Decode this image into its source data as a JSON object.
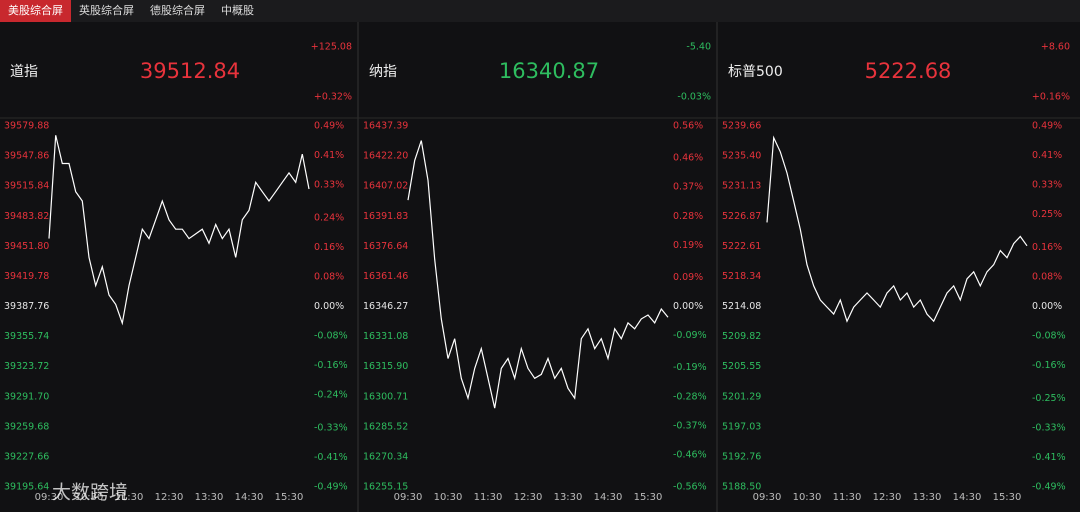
{
  "tabs": [
    "美股综合屏",
    "英股综合屏",
    "德股综合屏",
    "中概股"
  ],
  "watermark": "大数跨境",
  "chart_data": [
    {
      "type": "line",
      "title": "道指",
      "price": 39512.84,
      "change": "+125.08",
      "change_pct": "+0.32%",
      "color": "#e8333c",
      "line_color": "#ffffff",
      "x": [
        "09:30",
        "09:40",
        "09:50",
        "10:00",
        "10:10",
        "10:20",
        "10:30",
        "10:40",
        "10:50",
        "11:00",
        "11:10",
        "11:20",
        "11:30",
        "11:40",
        "11:50",
        "12:00",
        "12:10",
        "12:20",
        "12:30",
        "12:40",
        "12:50",
        "13:00",
        "13:10",
        "13:20",
        "13:30",
        "13:40",
        "13:50",
        "14:00",
        "14:10",
        "14:20",
        "14:30",
        "14:40",
        "14:50",
        "15:00",
        "15:10",
        "15:20",
        "15:30",
        "15:40",
        "15:50",
        "16:00"
      ],
      "values": [
        39460,
        39570,
        39540,
        39540,
        39510,
        39500,
        39440,
        39410,
        39430,
        39400,
        39390,
        39370,
        39410,
        39440,
        39470,
        39460,
        39480,
        39500,
        39480,
        39470,
        39470,
        39460,
        39465,
        39470,
        39455,
        39475,
        39460,
        39470,
        39440,
        39480,
        39490,
        39520,
        39510,
        39500,
        39510,
        39520,
        39530,
        39520,
        39550,
        39512.84
      ],
      "xticks": [
        "09:30",
        "10:30",
        "11:30",
        "12:30",
        "13:30",
        "14:30",
        "15:30"
      ],
      "ylim": [
        39195.64,
        39579.88
      ],
      "yticks": [
        39579.88,
        39547.86,
        39515.84,
        39483.82,
        {
          "value": 39451.8,
          "label": "39451.80"
        },
        39419.78,
        39387.76,
        39355.74,
        39323.72,
        {
          "value": 39291.7,
          "label": "39291.70"
        },
        39259.68,
        39227.66,
        39195.64
      ],
      "y2lim": [
        -0.49,
        0.49
      ],
      "y2ticks": [
        {
          "value": 0.49,
          "label": "0.49%"
        },
        {
          "value": 0.41,
          "label": "0.41%"
        },
        {
          "value": 0.33,
          "label": "0.33%"
        },
        {
          "value": 0.24,
          "label": "0.24%"
        },
        {
          "value": 0.16,
          "label": "0.16%"
        },
        {
          "value": 0.08,
          "label": "0.08%"
        },
        {
          "value": 0,
          "label": "0.00%"
        },
        {
          "value": -0.08,
          "label": "-0.08%"
        },
        {
          "value": -0.16,
          "label": "-0.16%"
        },
        {
          "value": -0.24,
          "label": "-0.24%"
        },
        {
          "value": -0.33,
          "label": "-0.33%"
        },
        {
          "value": -0.41,
          "label": "-0.41%"
        },
        {
          "value": -0.49,
          "label": "-0.49%"
        }
      ]
    },
    {
      "type": "line",
      "title": "纳指",
      "price": 16340.87,
      "change": "-5.40",
      "change_pct": "-0.03%",
      "color": "#2ebd5f",
      "line_color": "#ffffff",
      "x": [
        "09:30",
        "09:40",
        "09:50",
        "10:00",
        "10:10",
        "10:20",
        "10:30",
        "10:40",
        "10:50",
        "11:00",
        "11:10",
        "11:20",
        "11:30",
        "11:40",
        "11:50",
        "12:00",
        "12:10",
        "12:20",
        "12:30",
        "12:40",
        "12:50",
        "13:00",
        "13:10",
        "13:20",
        "13:30",
        "13:40",
        "13:50",
        "14:00",
        "14:10",
        "14:20",
        "14:30",
        "14:40",
        "14:50",
        "15:00",
        "15:10",
        "15:20",
        "15:30",
        "15:40",
        "15:50",
        "16:00"
      ],
      "values": [
        16400,
        16420,
        16430,
        16410,
        16370,
        16340,
        16320,
        16330,
        16310,
        16300,
        16315,
        16325,
        16310,
        16295,
        16315,
        16320,
        16310,
        16325,
        16315,
        16310,
        16312,
        16320,
        16310,
        16315,
        16305,
        16300,
        16330,
        16335,
        16325,
        16330,
        16320,
        16335,
        16330,
        16338,
        16335,
        16340,
        16342,
        16338,
        16345,
        16340.87
      ],
      "xticks": [
        "09:30",
        "10:30",
        "11:30",
        "12:30",
        "13:30",
        "14:30",
        "15:30"
      ],
      "ylim": [
        16255.15,
        16437.39
      ],
      "yticks": [
        16437.39,
        {
          "value": 16422.2,
          "label": "16422.20"
        },
        16407.02,
        16391.83,
        16376.64,
        16361.46,
        16346.27,
        16331.08,
        {
          "value": 16315.9,
          "label": "16315.90"
        },
        16300.71,
        16285.52,
        16270.34,
        16255.15
      ],
      "y2lim": [
        -0.56,
        0.56
      ],
      "y2ticks": [
        {
          "value": 0.56,
          "label": "0.56%"
        },
        {
          "value": 0.46,
          "label": "0.46%"
        },
        {
          "value": 0.37,
          "label": "0.37%"
        },
        {
          "value": 0.28,
          "label": "0.28%"
        },
        {
          "value": 0.19,
          "label": "0.19%"
        },
        {
          "value": 0.09,
          "label": "0.09%"
        },
        {
          "value": 0,
          "label": "0.00%"
        },
        {
          "value": -0.09,
          "label": "-0.09%"
        },
        {
          "value": -0.19,
          "label": "-0.19%"
        },
        {
          "value": -0.28,
          "label": "-0.28%"
        },
        {
          "value": -0.37,
          "label": "-0.37%"
        },
        {
          "value": -0.46,
          "label": "-0.46%"
        },
        {
          "value": -0.56,
          "label": "-0.56%"
        }
      ]
    },
    {
      "type": "line",
      "title": "标普500",
      "price": 5222.68,
      "change": "+8.60",
      "change_pct": "+0.16%",
      "color": "#e8333c",
      "line_color": "#ffffff",
      "x": [
        "09:30",
        "09:40",
        "09:50",
        "10:00",
        "10:10",
        "10:20",
        "10:30",
        "10:40",
        "10:50",
        "11:00",
        "11:10",
        "11:20",
        "11:30",
        "11:40",
        "11:50",
        "12:00",
        "12:10",
        "12:20",
        "12:30",
        "12:40",
        "12:50",
        "13:00",
        "13:10",
        "13:20",
        "13:30",
        "13:40",
        "13:50",
        "14:00",
        "14:10",
        "14:20",
        "14:30",
        "14:40",
        "14:50",
        "15:00",
        "15:10",
        "15:20",
        "15:30",
        "15:40",
        "15:50",
        "16:00"
      ],
      "values": [
        5226,
        5238,
        5236,
        5233,
        5229,
        5225,
        5220,
        5217,
        5215,
        5214,
        5213,
        5215,
        5212,
        5214,
        5215,
        5216,
        5215,
        5214,
        5216,
        5217,
        5215,
        5216,
        5214,
        5215,
        5213,
        5212,
        5214,
        5216,
        5217,
        5215,
        5218,
        5219,
        5217,
        5219,
        5220,
        5222,
        5221,
        5223,
        5224,
        5222.68
      ],
      "xticks": [
        "09:30",
        "10:30",
        "11:30",
        "12:30",
        "13:30",
        "14:30",
        "15:30"
      ],
      "ylim": [
        5188.5,
        5239.66
      ],
      "yticks": [
        5239.66,
        {
          "value": 5235.4,
          "label": "5235.40"
        },
        5231.13,
        5226.87,
        5222.61,
        5218.34,
        5214.08,
        5209.82,
        5205.55,
        5201.29,
        5197.03,
        5192.76,
        {
          "value": 5188.5,
          "label": "5188.50"
        }
      ],
      "y2lim": [
        -0.49,
        0.49
      ],
      "y2ticks": [
        {
          "value": 0.49,
          "label": "0.49%"
        },
        {
          "value": 0.41,
          "label": "0.41%"
        },
        {
          "value": 0.33,
          "label": "0.33%"
        },
        {
          "value": 0.25,
          "label": "0.25%"
        },
        {
          "value": 0.16,
          "label": "0.16%"
        },
        {
          "value": 0.08,
          "label": "0.08%"
        },
        {
          "value": 0,
          "label": "0.00%"
        },
        {
          "value": -0.08,
          "label": "-0.08%"
        },
        {
          "value": -0.16,
          "label": "-0.16%"
        },
        {
          "value": -0.25,
          "label": "-0.25%"
        },
        {
          "value": -0.33,
          "label": "-0.33%"
        },
        {
          "value": -0.41,
          "label": "-0.41%"
        },
        {
          "value": -0.49,
          "label": "-0.49%"
        }
      ]
    }
  ]
}
